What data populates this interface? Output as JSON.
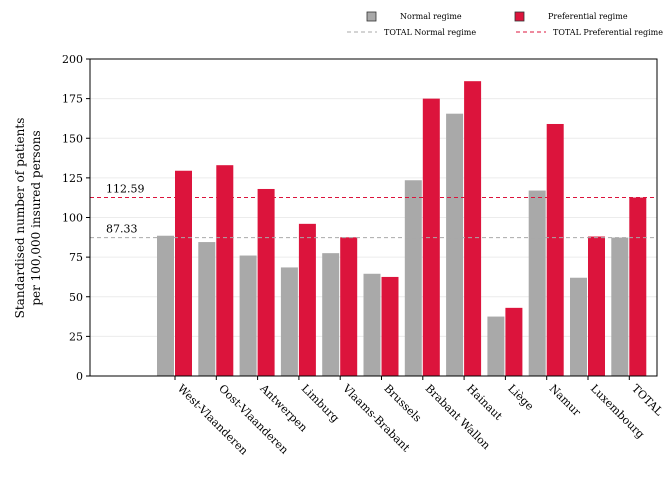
{
  "chart_data": {
    "type": "bar",
    "ylabel": "Standardised number of patients per 100,000 insured persons",
    "ylabel_lines": [
      "Standardised number of patients",
      "per 100,000 insured persons"
    ],
    "ylim": [
      0,
      200
    ],
    "yticks": [
      "0",
      "25",
      "50",
      "75",
      "100",
      "125",
      "150",
      "175",
      "200"
    ],
    "categories": [
      "West-Vlaanderen",
      "Oost-Vlaanderen",
      "Antwerpen",
      "Limburg",
      "Vlaams-Brabant",
      "Brussels",
      "Brabant Wallon",
      "Hainaut",
      "Liège",
      "Namur",
      "Luxembourg",
      "TOTAL"
    ],
    "series": [
      {
        "name": "Normal regime",
        "color": "#a9a9a9",
        "values": [
          88.5,
          84.5,
          76,
          68.5,
          77.5,
          64.5,
          123.5,
          165.5,
          37.5,
          117,
          62,
          87.33
        ]
      },
      {
        "name": "Preferential regime",
        "color": "#dc143c",
        "values": [
          129.5,
          133,
          118,
          96,
          87.5,
          62.5,
          175,
          186,
          43,
          159,
          88,
          112.59
        ]
      }
    ],
    "reference_lines": [
      {
        "name": "TOTAL Normal regime",
        "value": 87.33,
        "label": "87.33",
        "color": "#a9a9a9",
        "style": "dashed"
      },
      {
        "name": "TOTAL Preferential regime",
        "value": 112.59,
        "label": "112.59",
        "color": "#dc143c",
        "style": "dashed"
      }
    ],
    "legend": {
      "placement": "top-right"
    },
    "grid": true
  }
}
